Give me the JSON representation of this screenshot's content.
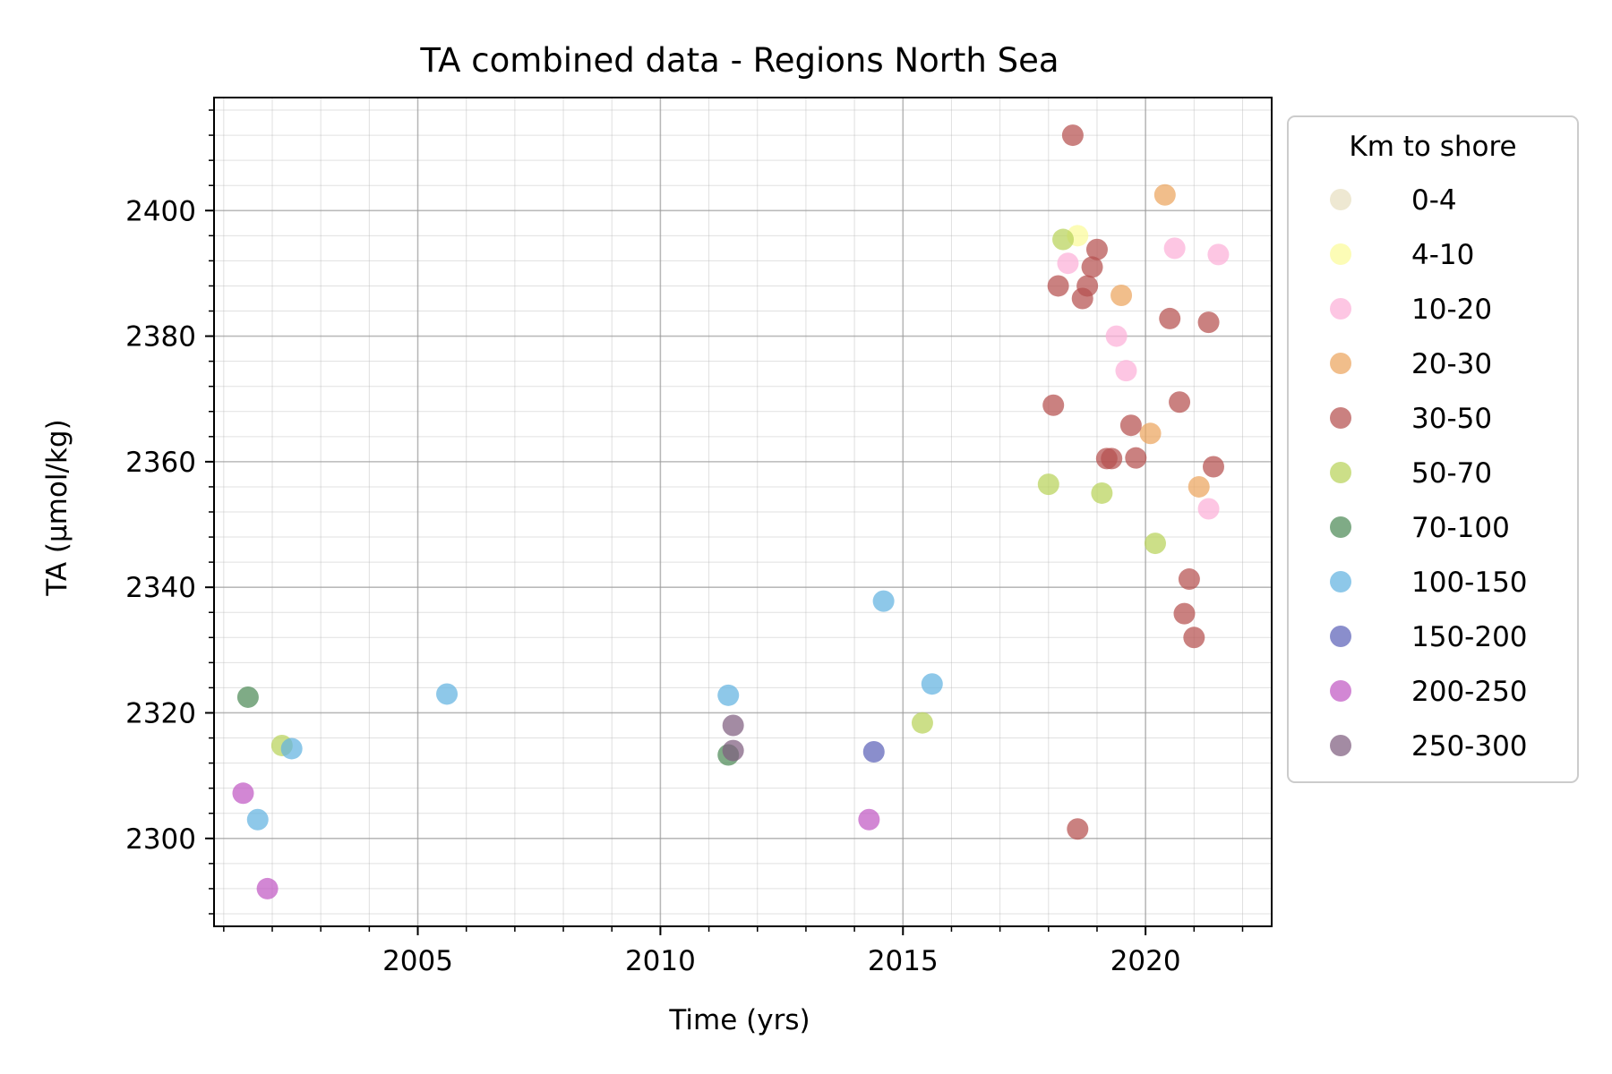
{
  "chart_data": {
    "type": "scatter",
    "title": "TA combined data - Regions North Sea",
    "xlabel": "Time (yrs)",
    "ylabel": "TA (µmol/kg)",
    "xlim": [
      2000.8,
      2022.6
    ],
    "ylim": [
      2286,
      2418
    ],
    "x_ticks": [
      2005,
      2010,
      2015,
      2020
    ],
    "y_ticks": [
      2300,
      2320,
      2340,
      2360,
      2380,
      2400
    ],
    "grid": true,
    "legend_title": "Km to shore",
    "legend_position": "right, outside plot",
    "series": [
      {
        "name": "0-4",
        "color": "#e8dfc0",
        "points": []
      },
      {
        "name": "4-10",
        "color": "#fbfb9a",
        "points": [
          [
            2018.6,
            2396
          ]
        ]
      },
      {
        "name": "10-20",
        "color": "#fcb0d8",
        "points": [
          [
            2018.4,
            2391.6
          ],
          [
            2019.4,
            2380
          ],
          [
            2019.6,
            2374.5
          ],
          [
            2020.6,
            2394
          ],
          [
            2021.5,
            2393
          ],
          [
            2021.3,
            2352.5
          ]
        ]
      },
      {
        "name": "20-30",
        "color": "#eba55e",
        "points": [
          [
            2020.4,
            2402.5
          ],
          [
            2019.5,
            2386.5
          ],
          [
            2020.1,
            2364.5
          ],
          [
            2021.1,
            2356
          ]
        ]
      },
      {
        "name": "30-50",
        "color": "#b5504f",
        "points": [
          [
            2018.5,
            2412
          ],
          [
            2019.0,
            2393.8
          ],
          [
            2018.9,
            2391
          ],
          [
            2018.2,
            2388
          ],
          [
            2018.8,
            2388
          ],
          [
            2018.7,
            2386
          ],
          [
            2020.5,
            2382.8
          ],
          [
            2021.3,
            2382.2
          ],
          [
            2018.1,
            2369
          ],
          [
            2020.7,
            2369.5
          ],
          [
            2019.7,
            2365.8
          ],
          [
            2019.2,
            2360.5
          ],
          [
            2019.3,
            2360.5
          ],
          [
            2019.8,
            2360.6
          ],
          [
            2021.4,
            2359.2
          ],
          [
            2020.9,
            2341.3
          ],
          [
            2020.8,
            2335.8
          ],
          [
            2021.0,
            2332
          ],
          [
            2018.6,
            2301.5
          ]
        ]
      },
      {
        "name": "50-70",
        "color": "#b9d25a",
        "points": [
          [
            2018.3,
            2395.4
          ],
          [
            2018.0,
            2356.4
          ],
          [
            2019.1,
            2355
          ],
          [
            2020.2,
            2347
          ],
          [
            2002.2,
            2314.8
          ],
          [
            2015.4,
            2318.4
          ]
        ]
      },
      {
        "name": "70-100",
        "color": "#4e8a57",
        "points": [
          [
            2001.5,
            2322.5
          ],
          [
            2011.4,
            2313.3
          ]
        ]
      },
      {
        "name": "100-150",
        "color": "#63b3e0",
        "points": [
          [
            2002.4,
            2314.3
          ],
          [
            2005.6,
            2323
          ],
          [
            2001.7,
            2303
          ],
          [
            2011.4,
            2322.8
          ],
          [
            2014.6,
            2337.8
          ],
          [
            2015.6,
            2324.6
          ]
        ]
      },
      {
        "name": "150-200",
        "color": "#5d63b8",
        "points": [
          [
            2014.4,
            2313.8
          ]
        ]
      },
      {
        "name": "200-250",
        "color": "#c159c4",
        "points": [
          [
            2001.4,
            2307.2
          ],
          [
            2001.9,
            2292
          ],
          [
            2014.3,
            2303
          ]
        ]
      },
      {
        "name": "250-300",
        "color": "#7f5e7f",
        "points": [
          [
            2011.5,
            2318
          ],
          [
            2011.5,
            2314
          ]
        ]
      }
    ]
  }
}
